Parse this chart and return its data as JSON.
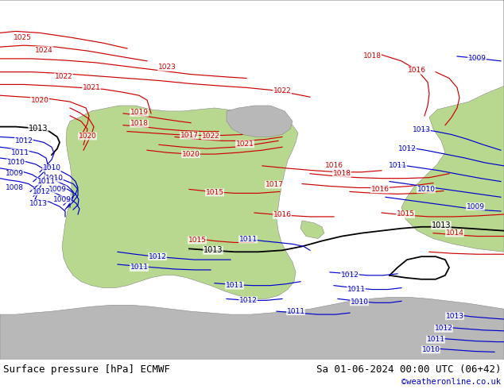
{
  "title_left": "Surface pressure [hPa] ECMWF",
  "title_right": "Sa 01-06-2024 00:00 UTC (06+42)",
  "watermark": "©weatheronline.co.uk",
  "sea_color": "#d8d8d8",
  "land_green": "#b8d890",
  "land_gray": "#b8b8b8",
  "red": "#cc0000",
  "blue": "#0000cc",
  "black": "#000000",
  "title_fontsize": 9,
  "watermark_color": "#0000cc",
  "figsize": [
    6.34,
    4.9
  ],
  "dpi": 100
}
